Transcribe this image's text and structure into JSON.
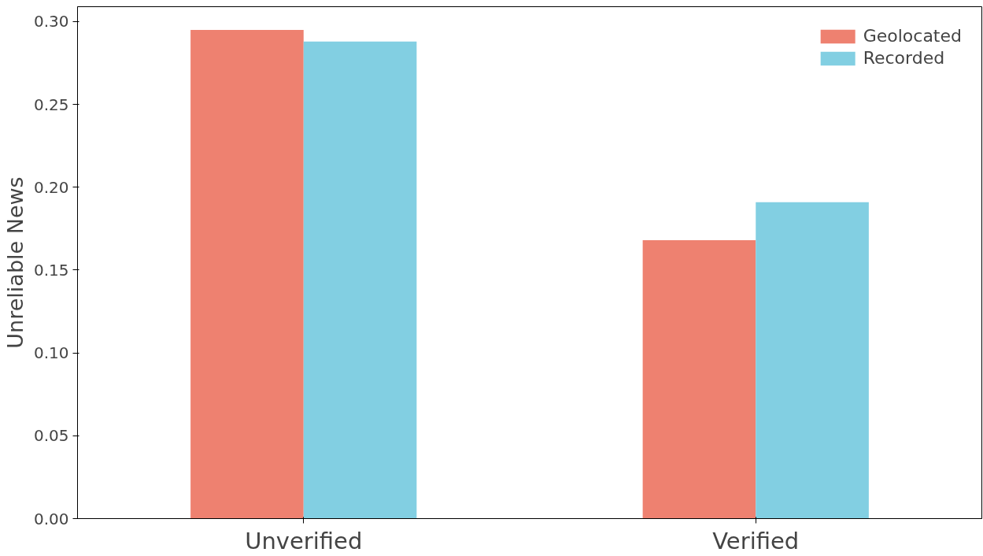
{
  "chart_data": {
    "type": "bar",
    "ylabel": "Unreliable News",
    "categories": [
      "Unverified",
      "Verified"
    ],
    "series": [
      {
        "name": "Geolocated",
        "color": "#ee8170",
        "values": [
          0.295,
          0.168
        ]
      },
      {
        "name": "Recorded",
        "color": "#82cfe2",
        "values": [
          0.288,
          0.191
        ]
      }
    ],
    "ylim": [
      0,
      0.309
    ],
    "yticks": [
      {
        "value": 0,
        "label": "0.00"
      },
      {
        "value": 0.05,
        "label": "0.05"
      },
      {
        "value": 0.1,
        "label": "0.10"
      },
      {
        "value": 0.15,
        "label": "0.15"
      },
      {
        "value": 0.2,
        "label": "0.20"
      },
      {
        "value": 0.25,
        "label": "0.25"
      },
      {
        "value": 0.3,
        "label": "0.30"
      }
    ],
    "legend": "top right",
    "grid": false
  }
}
